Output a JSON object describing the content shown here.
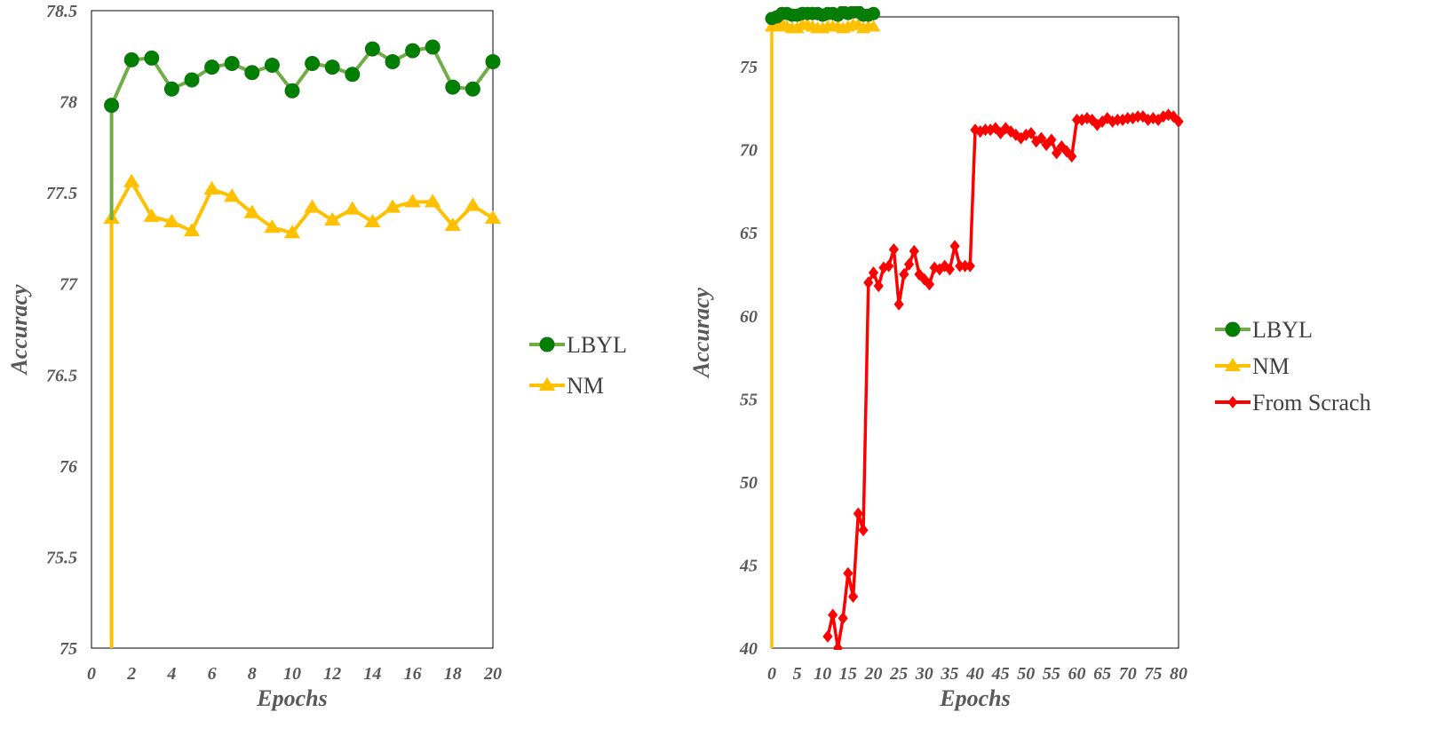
{
  "chart_data": [
    {
      "type": "line",
      "title": "",
      "xlabel": "Epochs",
      "ylabel": "Accuracy",
      "xlim": [
        0,
        20
      ],
      "ylim": [
        75,
        78.5
      ],
      "x_ticks": [
        "0",
        "2",
        "4",
        "6",
        "8",
        "10",
        "12",
        "14",
        "16",
        "18",
        "20"
      ],
      "y_ticks": [
        "75",
        "75.5",
        "76",
        "76.5",
        "77",
        "77.5",
        "78",
        "78.5"
      ],
      "grid": false,
      "legend_position": "right",
      "series": [
        {
          "name": "LBYL",
          "color": "#70AD47",
          "marker": "circle",
          "marker_color": "#008000",
          "x": [
            1,
            1,
            2,
            3,
            4,
            5,
            6,
            7,
            8,
            9,
            10,
            11,
            12,
            13,
            14,
            15,
            16,
            17,
            18,
            19,
            20
          ],
          "values": [
            77.35,
            77.98,
            78.23,
            78.24,
            78.07,
            78.12,
            78.19,
            78.21,
            78.16,
            78.2,
            78.06,
            78.21,
            78.19,
            78.15,
            78.29,
            78.22,
            78.28,
            78.3,
            78.08,
            78.07,
            78.22
          ],
          "marker_start": 1
        },
        {
          "name": "NM",
          "color": "#FFC000",
          "marker": "triangle",
          "marker_color": "#FFC000",
          "x": [
            1,
            1,
            2,
            3,
            4,
            5,
            6,
            7,
            8,
            9,
            10,
            11,
            12,
            13,
            14,
            15,
            16,
            17,
            18,
            19,
            20
          ],
          "values": [
            75.0,
            77.36,
            77.56,
            77.37,
            77.34,
            77.29,
            77.52,
            77.48,
            77.39,
            77.31,
            77.28,
            77.42,
            77.35,
            77.41,
            77.34,
            77.42,
            77.45,
            77.45,
            77.32,
            77.43,
            77.36
          ],
          "marker_start": 1
        }
      ]
    },
    {
      "type": "line",
      "title": "",
      "xlabel": "Epochs",
      "ylabel": "Accuracy",
      "xlim": [
        0,
        80
      ],
      "ylim": [
        40,
        78
      ],
      "x_ticks": [
        "0",
        "5",
        "10",
        "15",
        "20",
        "25",
        "30",
        "35",
        "40",
        "45",
        "50",
        "55",
        "60",
        "65",
        "70",
        "75",
        "80"
      ],
      "y_ticks": [
        "40",
        "45",
        "50",
        "55",
        "60",
        "65",
        "70",
        "75"
      ],
      "grid": false,
      "legend_position": "right",
      "series": [
        {
          "name": "LBYL",
          "color": "#70AD47",
          "marker": "circle",
          "marker_color": "#008000",
          "x": [
            0,
            1,
            2,
            3,
            4,
            5,
            6,
            7,
            8,
            9,
            10,
            11,
            12,
            13,
            14,
            15,
            16,
            17,
            18,
            19,
            20
          ],
          "values": [
            77.9,
            78.0,
            78.2,
            78.2,
            78.1,
            78.1,
            78.2,
            78.2,
            78.2,
            78.2,
            78.1,
            78.2,
            78.2,
            78.1,
            78.3,
            78.2,
            78.3,
            78.3,
            78.1,
            78.1,
            78.2
          ],
          "marker_start": 0
        },
        {
          "name": "NM",
          "color": "#FFC000",
          "marker": "triangle",
          "marker_color": "#FFC000",
          "x": [
            0,
            0,
            1,
            2,
            3,
            4,
            5,
            6,
            7,
            8,
            9,
            10,
            11,
            12,
            13,
            14,
            15,
            16,
            17,
            18,
            19,
            20
          ],
          "values": [
            40,
            77.4,
            77.4,
            77.6,
            77.4,
            77.3,
            77.3,
            77.5,
            77.5,
            77.4,
            77.3,
            77.3,
            77.4,
            77.4,
            77.4,
            77.3,
            77.4,
            77.5,
            77.5,
            77.3,
            77.4,
            77.4
          ],
          "marker_start": 1
        },
        {
          "name": "From Scrach",
          "color": "#FF0000",
          "marker": "diamond",
          "marker_color": "#FF0000",
          "x": [
            11,
            12,
            13,
            14,
            15,
            16,
            17,
            18,
            19,
            20,
            21,
            22,
            23,
            24,
            25,
            26,
            27,
            28,
            29,
            30,
            31,
            32,
            33,
            34,
            35,
            36,
            37,
            38,
            39,
            40,
            41,
            42,
            43,
            44,
            45,
            46,
            47,
            48,
            49,
            50,
            51,
            52,
            53,
            54,
            55,
            56,
            57,
            58,
            59,
            60,
            61,
            62,
            63,
            64,
            65,
            66,
            67,
            68,
            69,
            70,
            71,
            72,
            73,
            74,
            75,
            76,
            77,
            78,
            79,
            80
          ],
          "values": [
            40.7,
            42.0,
            40.0,
            41.8,
            44.5,
            43.1,
            48.1,
            47.1,
            62.0,
            62.6,
            61.8,
            62.9,
            63.0,
            64.0,
            60.7,
            62.5,
            63.1,
            63.9,
            62.5,
            62.2,
            61.9,
            62.9,
            62.8,
            63.0,
            62.8,
            64.2,
            63.0,
            63.0,
            63.0,
            71.2,
            71.1,
            71.2,
            71.2,
            71.3,
            71.0,
            71.3,
            71.1,
            70.9,
            70.7,
            70.9,
            71.0,
            70.5,
            70.7,
            70.3,
            70.6,
            69.8,
            70.2,
            69.9,
            69.6,
            71.8,
            71.8,
            71.9,
            71.8,
            71.5,
            71.7,
            71.9,
            71.7,
            71.8,
            71.8,
            71.9,
            71.9,
            72.0,
            72.0,
            71.8,
            71.9,
            71.8,
            72.0,
            72.1,
            72.0,
            71.7
          ],
          "marker_start": 0
        }
      ]
    }
  ]
}
